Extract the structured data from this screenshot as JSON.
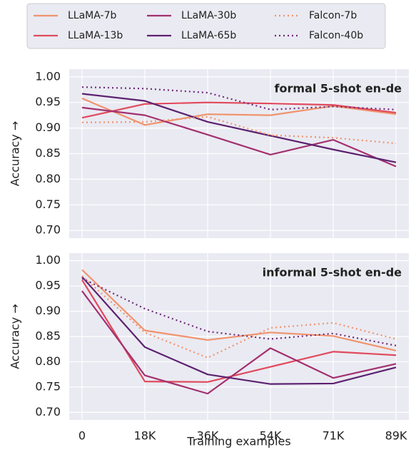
{
  "chart_data": [
    {
      "type": "line",
      "title": "formal 5-shot en-de",
      "y_label": "Accuracy →",
      "categories": [
        "0",
        "18K",
        "36K",
        "54K",
        "71K",
        "89K"
      ],
      "ylim": [
        0.685,
        1.015
      ],
      "yticks": [
        {
          "value": 0.7,
          "label": "0.70"
        },
        {
          "value": 0.75,
          "label": "0.75"
        },
        {
          "value": 0.8,
          "label": "0.80"
        },
        {
          "value": 0.85,
          "label": "0.85"
        },
        {
          "value": 0.9,
          "label": "0.90"
        },
        {
          "value": 0.95,
          "label": "0.95"
        },
        {
          "value": 1.0,
          "label": "1.00"
        }
      ],
      "grid": true,
      "series": [
        {
          "name": "LLaMA-7b",
          "color": "#f0936c",
          "linestyle": "solid",
          "values": [
            0.958,
            0.906,
            0.927,
            0.925,
            0.943,
            0.927
          ]
        },
        {
          "name": "LLaMA-13b",
          "color": "#e04a5d",
          "linestyle": "solid",
          "values": [
            0.92,
            0.947,
            0.95,
            0.948,
            0.945,
            0.93
          ]
        },
        {
          "name": "LLaMA-30b",
          "color": "#a3306f",
          "linestyle": "solid",
          "values": [
            0.94,
            0.925,
            0.887,
            0.848,
            0.877,
            0.825
          ]
        },
        {
          "name": "LLaMA-65b",
          "color": "#5c2270",
          "linestyle": "solid",
          "values": [
            0.967,
            0.953,
            0.912,
            0.885,
            0.858,
            0.833
          ]
        },
        {
          "name": "Falcon-7b",
          "color": "#f0936c",
          "linestyle": "dotted",
          "values": [
            0.911,
            0.912,
            0.922,
            0.886,
            0.881,
            0.87
          ]
        },
        {
          "name": "Falcon-40b",
          "color": "#6e2a78",
          "linestyle": "dotted",
          "values": [
            0.98,
            0.977,
            0.969,
            0.936,
            0.942,
            0.936
          ]
        }
      ]
    },
    {
      "type": "line",
      "title": "informal 5-shot en-de",
      "y_label": "Accuracy →",
      "x_label": "Training examples",
      "categories": [
        "0",
        "18K",
        "36K",
        "54K",
        "71K",
        "89K"
      ],
      "ylim": [
        0.685,
        1.015
      ],
      "yticks": [
        {
          "value": 0.7,
          "label": "0.70"
        },
        {
          "value": 0.75,
          "label": "0.75"
        },
        {
          "value": 0.8,
          "label": "0.80"
        },
        {
          "value": 0.85,
          "label": "0.85"
        },
        {
          "value": 0.9,
          "label": "0.90"
        },
        {
          "value": 0.95,
          "label": "0.95"
        },
        {
          "value": 1.0,
          "label": "1.00"
        }
      ],
      "grid": true,
      "series": [
        {
          "name": "LLaMA-7b",
          "color": "#f0936c",
          "linestyle": "solid",
          "values": [
            0.982,
            0.862,
            0.843,
            0.858,
            0.851,
            0.822
          ]
        },
        {
          "name": "LLaMA-13b",
          "color": "#e04a5d",
          "linestyle": "solid",
          "values": [
            0.962,
            0.761,
            0.76,
            0.79,
            0.82,
            0.813
          ]
        },
        {
          "name": "LLaMA-30b",
          "color": "#a3306f",
          "linestyle": "solid",
          "values": [
            0.94,
            0.773,
            0.737,
            0.827,
            0.768,
            0.796
          ]
        },
        {
          "name": "LLaMA-65b",
          "color": "#5c2270",
          "linestyle": "solid",
          "values": [
            0.968,
            0.829,
            0.775,
            0.756,
            0.757,
            0.789
          ]
        },
        {
          "name": "Falcon-7b",
          "color": "#f0936c",
          "linestyle": "dotted",
          "values": [
            0.97,
            0.858,
            0.808,
            0.867,
            0.877,
            0.845
          ]
        },
        {
          "name": "Falcon-40b",
          "color": "#6e2a78",
          "linestyle": "dotted",
          "values": [
            0.965,
            0.905,
            0.86,
            0.845,
            0.856,
            0.832
          ]
        }
      ]
    }
  ]
}
